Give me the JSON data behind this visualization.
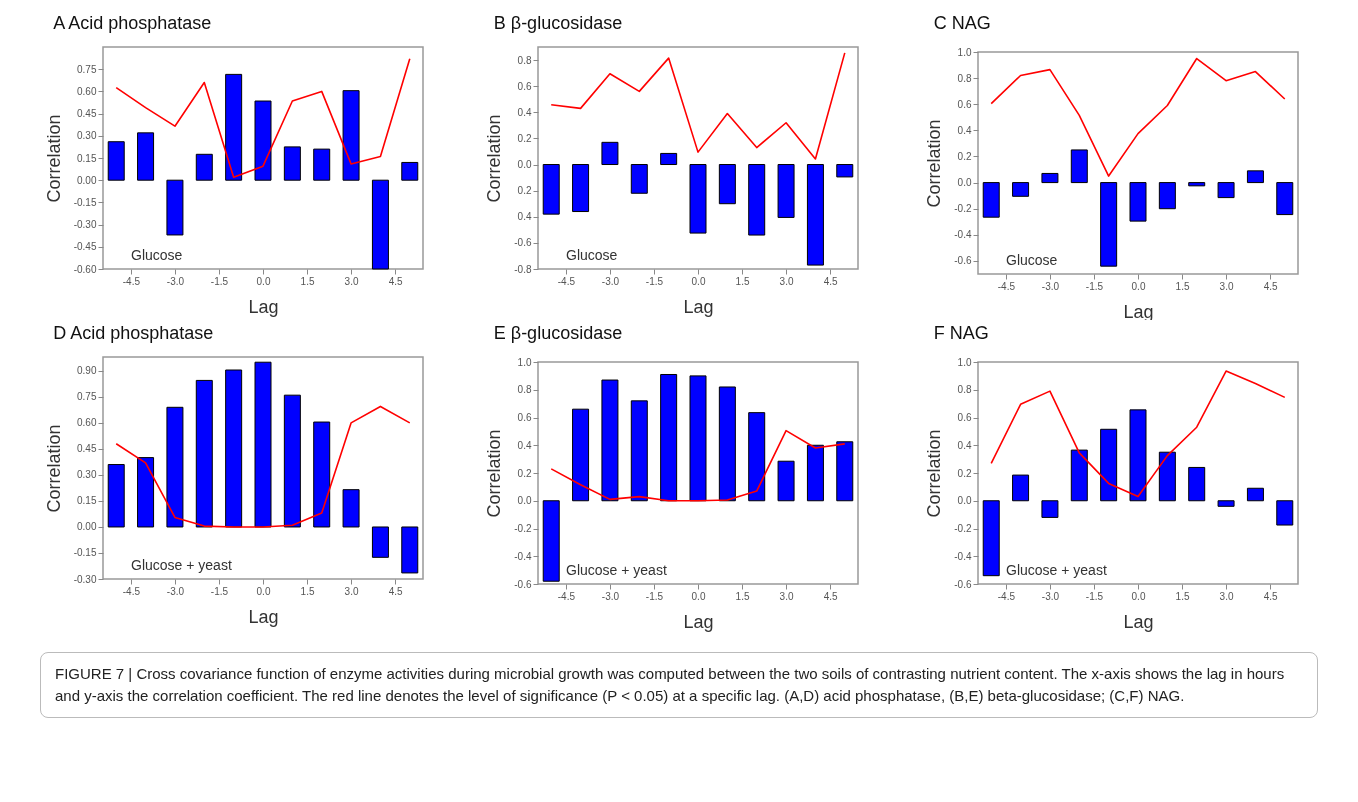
{
  "chart_data": [
    {
      "type": "bar",
      "title": "A  Acid phosphatase",
      "xlabel": "Lag",
      "ylabel": "Correlation",
      "annotations": [
        "Glucose"
      ],
      "x": [
        -5,
        -4,
        -3,
        -2,
        -1,
        0,
        1,
        2,
        3,
        4,
        5
      ],
      "xlim": [
        -5.28,
        5.28
      ],
      "xticks": [
        -4.5,
        {
          "value": -3,
          "label": "-3.0"
        },
        -1.5,
        {
          "value": 0,
          "label": "0.0"
        },
        1.5,
        {
          "value": 3,
          "label": "3.0"
        },
        4.5
      ],
      "ylim": [
        -0.6,
        0.9
      ],
      "yticks": [
        {
          "value": -0.6,
          "label": "-0.60"
        },
        -0.45,
        {
          "value": -0.3,
          "label": "-0.30"
        },
        -0.15,
        {
          "value": 0,
          "label": "0.00"
        },
        0.15,
        {
          "value": 0.3,
          "label": "0.30"
        },
        0.45,
        {
          "value": 0.6,
          "label": "0.60"
        },
        0.75
      ],
      "grid": false,
      "series": [
        {
          "type": "bar",
          "color": "#0000ff",
          "values": [
            0.26,
            0.32,
            -0.37,
            0.175,
            0.715,
            0.535,
            0.225,
            0.21,
            0.605,
            -0.6,
            0.12
          ]
        },
        {
          "type": "line",
          "color": "#ff0000",
          "values": [
            0.625,
            0.49,
            0.365,
            0.66,
            0.02,
            0.095,
            0.535,
            0.6,
            0.11,
            0.16,
            0.82
          ]
        }
      ]
    },
    {
      "type": "bar",
      "title": "B  β-glucosidase",
      "xlabel": "Lag",
      "ylabel": "Correlation",
      "annotations": [
        "Glucose"
      ],
      "x": [
        -5,
        -4,
        -3,
        -2,
        -1,
        0,
        1,
        2,
        3,
        4,
        5
      ],
      "xlim": [
        -5.28,
        5.28
      ],
      "xticks": [
        -4.5,
        {
          "value": -3,
          "label": "-3.0"
        },
        -1.5,
        {
          "value": 0,
          "label": "0.0"
        },
        1.5,
        {
          "value": 3,
          "label": "3.0"
        },
        4.5
      ],
      "ylim": [
        -0.8,
        0.9
      ],
      "yticks": [
        -0.8,
        -0.6,
        {
          "value": -0.4,
          "label": "0.4"
        },
        {
          "value": -0.2,
          "label": "0.2"
        },
        {
          "value": 0,
          "label": "0.0"
        },
        0.2,
        0.4,
        0.6,
        0.8
      ],
      "grid": false,
      "series": [
        {
          "type": "bar",
          "color": "#0000ff",
          "values": [
            -0.38,
            -0.36,
            0.17,
            -0.22,
            0.085,
            -0.525,
            -0.3,
            -0.54,
            -0.405,
            -0.77,
            -0.095
          ]
        },
        {
          "type": "line",
          "color": "#ff0000",
          "values": [
            0.458,
            0.43,
            0.695,
            0.56,
            0.815,
            0.095,
            0.39,
            0.13,
            0.32,
            0.043,
            0.855
          ]
        }
      ]
    },
    {
      "type": "bar",
      "title": "C  NAG",
      "xlabel": "Lag",
      "ylabel": "Correlation",
      "annotations": [
        "Glucose"
      ],
      "x": [
        -5,
        -4,
        -3,
        -2,
        -1,
        0,
        1,
        2,
        3,
        4,
        5
      ],
      "xlim": [
        -5.28,
        5.28
      ],
      "xticks": [
        -4.5,
        {
          "value": -3,
          "label": "-3.0"
        },
        -1.5,
        {
          "value": 0,
          "label": "0.0"
        },
        1.5,
        {
          "value": 3,
          "label": "3.0"
        },
        4.5
      ],
      "ylim": [
        -0.7,
        1.0
      ],
      "yticks": [
        -0.6,
        -0.4,
        -0.2,
        {
          "value": 0,
          "label": "0.0"
        },
        0.2,
        0.4,
        0.6,
        0.8,
        {
          "value": 1,
          "label": "1.0"
        }
      ],
      "grid": false,
      "series": [
        {
          "type": "bar",
          "color": "#0000ff",
          "values": [
            -0.265,
            -0.105,
            0.07,
            0.25,
            -0.64,
            -0.295,
            -0.2,
            -0.025,
            -0.115,
            0.09,
            -0.245
          ]
        },
        {
          "type": "line",
          "color": "#ff0000",
          "values": [
            0.605,
            0.82,
            0.865,
            0.515,
            0.05,
            0.375,
            0.59,
            0.95,
            0.78,
            0.85,
            0.64
          ]
        }
      ]
    },
    {
      "type": "bar",
      "title": "D  Acid phosphatase",
      "xlabel": "Lag",
      "ylabel": "Correlation",
      "annotations": [
        "Glucose + yeast"
      ],
      "x": [
        -5,
        -4,
        -3,
        -2,
        -1,
        0,
        1,
        2,
        3,
        4,
        5
      ],
      "xlim": [
        -5.28,
        5.28
      ],
      "xticks": [
        -4.5,
        {
          "value": -3,
          "label": "-3.0"
        },
        -1.5,
        {
          "value": 0,
          "label": "0.0"
        },
        1.5,
        {
          "value": 3,
          "label": "3.0"
        },
        4.5
      ],
      "ylim": [
        -0.3,
        0.98
      ],
      "yticks": [
        {
          "value": -0.3,
          "label": "-0.30"
        },
        -0.15,
        {
          "value": 0,
          "label": "0.00"
        },
        0.15,
        {
          "value": 0.3,
          "label": "0.30"
        },
        0.45,
        {
          "value": 0.6,
          "label": "0.60"
        },
        0.75,
        {
          "value": 0.9,
          "label": "0.90"
        }
      ],
      "grid": false,
      "series": [
        {
          "type": "bar",
          "color": "#0000ff",
          "values": [
            0.36,
            0.4,
            0.69,
            0.845,
            0.905,
            0.95,
            0.76,
            0.605,
            0.215,
            -0.175,
            -0.265
          ]
        },
        {
          "type": "line",
          "color": "#ff0000",
          "values": [
            0.48,
            0.37,
            0.055,
            0.005,
            0,
            0,
            0.01,
            0.08,
            0.6,
            0.695,
            0.6
          ]
        }
      ]
    },
    {
      "type": "bar",
      "title": "E  β-glucosidase",
      "xlabel": "Lag",
      "ylabel": "Correlation",
      "annotations": [
        "Glucose + yeast"
      ],
      "x": [
        -5,
        -4,
        -3,
        -2,
        -1,
        0,
        1,
        2,
        3,
        4,
        5
      ],
      "xlim": [
        -5.28,
        5.28
      ],
      "xticks": [
        -4.5,
        {
          "value": -3,
          "label": "-3.0"
        },
        -1.5,
        {
          "value": 0,
          "label": "0.0"
        },
        1.5,
        {
          "value": 3,
          "label": "3.0"
        },
        4.5
      ],
      "ylim": [
        -0.6,
        1.0
      ],
      "yticks": [
        -0.6,
        -0.4,
        -0.2,
        {
          "value": 0,
          "label": "0.0"
        },
        0.2,
        0.4,
        0.6,
        0.8,
        {
          "value": 1,
          "label": "1.0"
        }
      ],
      "grid": false,
      "series": [
        {
          "type": "bar",
          "color": "#0000ff",
          "values": [
            -0.58,
            0.66,
            0.87,
            0.72,
            0.91,
            0.9,
            0.82,
            0.635,
            0.285,
            0.4,
            0.425
          ]
        },
        {
          "type": "line",
          "color": "#ff0000",
          "values": [
            0.23,
            0.115,
            0.01,
            0.03,
            0,
            0,
            0.005,
            0.07,
            0.505,
            0.38,
            0.41
          ]
        }
      ]
    },
    {
      "type": "bar",
      "title": "F  NAG",
      "xlabel": "Lag",
      "ylabel": "Correlation",
      "annotations": [
        "Glucose + yeast"
      ],
      "x": [
        -5,
        -4,
        -3,
        -2,
        -1,
        0,
        1,
        2,
        3,
        4,
        5
      ],
      "xlim": [
        -5.28,
        5.28
      ],
      "xticks": [
        -4.5,
        {
          "value": -3,
          "label": "-3.0"
        },
        -1.5,
        {
          "value": 0,
          "label": "0.0"
        },
        1.5,
        {
          "value": 3,
          "label": "3.0"
        },
        4.5
      ],
      "ylim": [
        -0.6,
        1.0
      ],
      "yticks": [
        -0.6,
        -0.4,
        -0.2,
        {
          "value": 0,
          "label": "0.0"
        },
        0.2,
        0.4,
        0.6,
        0.8,
        {
          "value": 1,
          "label": "1.0"
        }
      ],
      "grid": false,
      "series": [
        {
          "type": "bar",
          "color": "#0000ff",
          "values": [
            -0.54,
            0.185,
            -0.12,
            0.365,
            0.515,
            0.655,
            0.35,
            0.24,
            -0.04,
            0.09,
            -0.175
          ]
        },
        {
          "type": "line",
          "color": "#ff0000",
          "values": [
            0.27,
            0.695,
            0.79,
            0.345,
            0.125,
            0.03,
            0.325,
            0.53,
            0.935,
            0.845,
            0.745
          ]
        }
      ]
    },
    {
      "type": "other",
      "annotations": [
        "FIGURE 7 | Cross covariance function of enzyme activities during microbial growth was computed between the two soils of contrasting nutrient content. The x-axis shows the lag in hours and y-axis the correlation coefficient. The red line denotes the level of significance (P < 0.05) at a specific lag. (A,D) acid phosphatase, (B,E) beta-glucosidase; (C,F) NAG."
      ]
    }
  ]
}
